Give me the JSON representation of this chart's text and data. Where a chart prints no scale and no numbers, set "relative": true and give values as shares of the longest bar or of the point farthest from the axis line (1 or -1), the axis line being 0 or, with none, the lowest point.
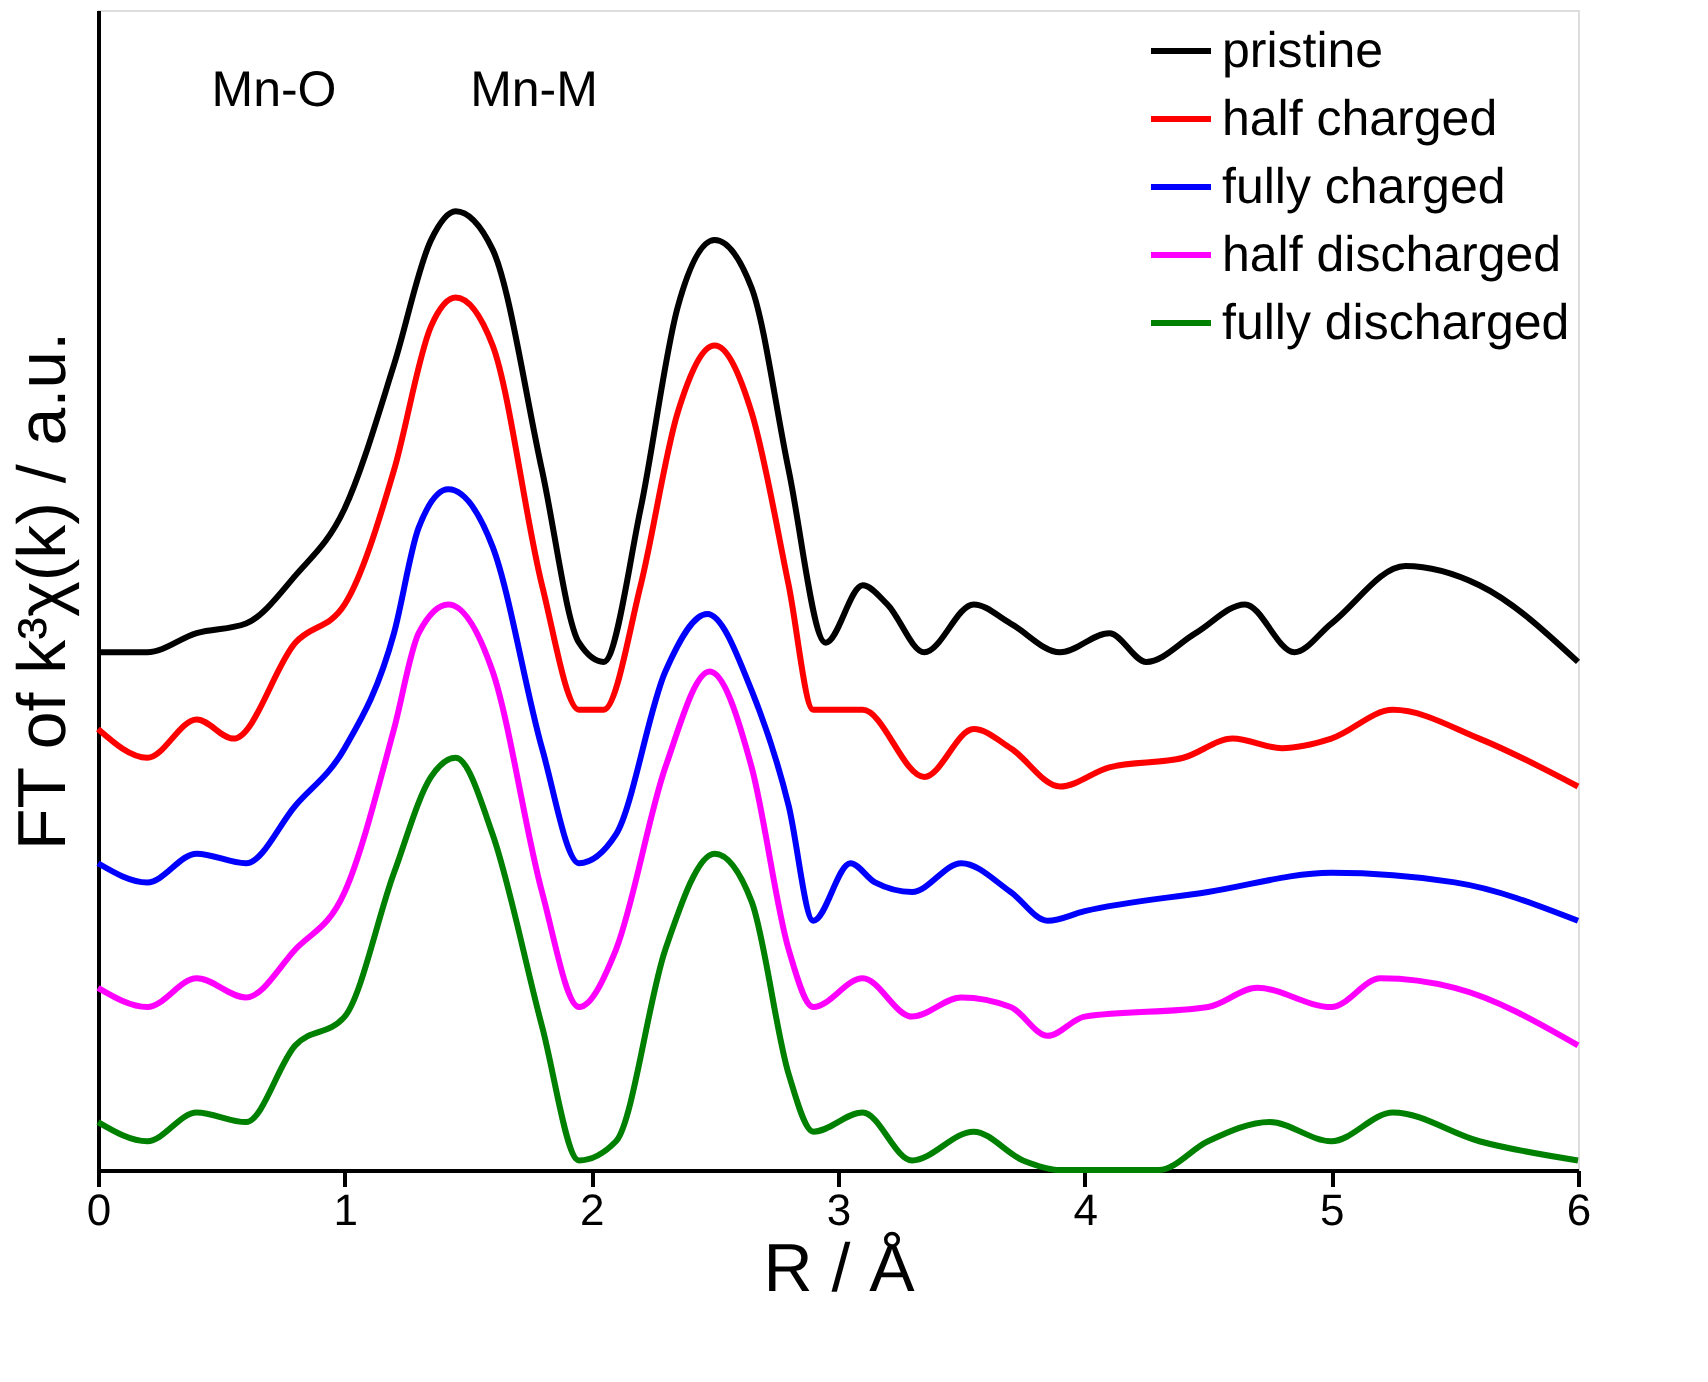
{
  "chart_data": {
    "type": "line",
    "relative": true,
    "xlabel": "R / Å",
    "ylabel": "FT of k³χ(k) / a.u.",
    "xlim": [
      0,
      6
    ],
    "xticks": [
      0,
      1,
      2,
      3,
      4,
      5,
      6
    ],
    "legend": "top right",
    "tick_labels": "x",
    "line_style": "solid",
    "annotations": [
      "Mn-O",
      "Mn-M"
    ],
    "series": [
      {
        "name": "pristine",
        "color": "#000000",
        "x": [
          0,
          0.2,
          0.4,
          0.6,
          0.8,
          1.0,
          1.2,
          1.35,
          1.45,
          1.6,
          1.8,
          1.95,
          2.05,
          2.2,
          2.35,
          2.5,
          2.65,
          2.8,
          2.95,
          3.1,
          3.2,
          3.35,
          3.55,
          3.7,
          3.9,
          4.1,
          4.25,
          4.45,
          4.65,
          4.85,
          5.0,
          5.3,
          5.6,
          6.0
        ],
        "values": [
          0.54,
          0.54,
          0.56,
          0.57,
          0.62,
          0.69,
          0.84,
          0.97,
          1,
          0.96,
          0.73,
          0.55,
          0.53,
          0.69,
          0.9,
          0.97,
          0.92,
          0.73,
          0.55,
          0.61,
          0.59,
          0.54,
          0.59,
          0.57,
          0.54,
          0.56,
          0.53,
          0.56,
          0.59,
          0.54,
          0.57,
          0.63,
          0.61,
          0.53
        ]
      },
      {
        "name": "half charged",
        "color": "#ff0000",
        "x": [
          0,
          0.2,
          0.4,
          0.55,
          0.8,
          1.0,
          1.2,
          1.35,
          1.45,
          1.6,
          1.8,
          1.95,
          2.05,
          2.2,
          2.35,
          2.5,
          2.65,
          2.8,
          2.9,
          3.05,
          3.1,
          3.35,
          3.55,
          3.7,
          3.9,
          4.1,
          4.4,
          4.6,
          4.8,
          5.0,
          5.25,
          5.6,
          6.0
        ],
        "values": [
          0.46,
          0.43,
          0.47,
          0.45,
          0.55,
          0.59,
          0.73,
          0.88,
          0.91,
          0.86,
          0.61,
          0.48,
          0.48,
          0.61,
          0.79,
          0.86,
          0.79,
          0.61,
          0.48,
          0.48,
          0.48,
          0.41,
          0.46,
          0.44,
          0.4,
          0.42,
          0.43,
          0.45,
          0.44,
          0.45,
          0.48,
          0.45,
          0.4
        ]
      },
      {
        "name": "fully charged",
        "color": "#0000ff",
        "x": [
          0,
          0.2,
          0.4,
          0.6,
          0.8,
          1.0,
          1.2,
          1.3,
          1.42,
          1.6,
          1.8,
          1.95,
          2.1,
          2.3,
          2.47,
          2.65,
          2.8,
          2.9,
          3.05,
          3.15,
          3.3,
          3.5,
          3.7,
          3.85,
          4.0,
          4.5,
          5.0,
          5.5,
          6.0
        ],
        "values": [
          0.32,
          0.3,
          0.33,
          0.32,
          0.38,
          0.44,
          0.56,
          0.67,
          0.71,
          0.65,
          0.44,
          0.32,
          0.35,
          0.52,
          0.58,
          0.5,
          0.38,
          0.26,
          0.32,
          0.3,
          0.29,
          0.32,
          0.29,
          0.26,
          0.27,
          0.29,
          0.31,
          0.3,
          0.26
        ]
      },
      {
        "name": "half discharged",
        "color": "#ff00ff",
        "x": [
          0,
          0.2,
          0.4,
          0.6,
          0.8,
          1.0,
          1.2,
          1.3,
          1.42,
          1.6,
          1.8,
          1.95,
          2.1,
          2.3,
          2.48,
          2.65,
          2.8,
          2.9,
          3.1,
          3.3,
          3.5,
          3.7,
          3.85,
          4.0,
          4.5,
          4.7,
          5.0,
          5.2,
          5.5,
          6.0
        ],
        "values": [
          0.19,
          0.17,
          0.2,
          0.18,
          0.23,
          0.29,
          0.46,
          0.56,
          0.59,
          0.52,
          0.29,
          0.17,
          0.23,
          0.42,
          0.52,
          0.42,
          0.23,
          0.17,
          0.2,
          0.16,
          0.18,
          0.17,
          0.14,
          0.16,
          0.17,
          0.19,
          0.17,
          0.2,
          0.19,
          0.13
        ]
      },
      {
        "name": "fully discharged",
        "color": "#008000",
        "x": [
          0,
          0.2,
          0.4,
          0.6,
          0.8,
          1.0,
          1.2,
          1.35,
          1.45,
          1.6,
          1.8,
          1.95,
          2.1,
          2.3,
          2.5,
          2.65,
          2.8,
          2.9,
          3.1,
          3.3,
          3.55,
          3.75,
          3.9,
          4.3,
          4.5,
          4.75,
          5.0,
          5.25,
          5.6,
          6.0
        ],
        "values": [
          0.05,
          0.03,
          0.06,
          0.05,
          0.13,
          0.16,
          0.31,
          0.41,
          0.43,
          0.35,
          0.15,
          0.01,
          0.03,
          0.23,
          0.33,
          0.28,
          0.1,
          0.04,
          0.06,
          0.01,
          0.04,
          0.01,
          0,
          0,
          0.03,
          0.05,
          0.03,
          0.06,
          0.03,
          0.01
        ]
      }
    ]
  }
}
